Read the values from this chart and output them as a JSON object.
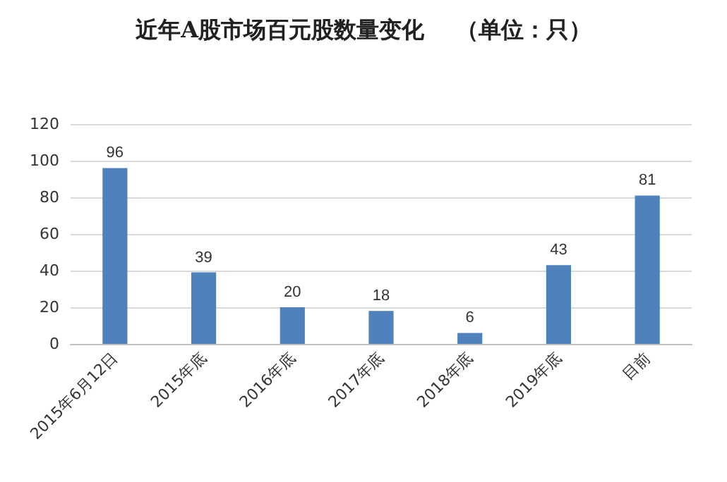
{
  "chart_data": {
    "type": "bar",
    "title": "近年A股市场百元股数量变化    （单位：只）",
    "categories": [
      "2015年6月12日",
      "2015年底",
      "2016年底",
      "2017年底",
      "2018年底",
      "2019年底",
      "目前"
    ],
    "values": [
      96,
      39,
      20,
      18,
      6,
      43,
      81
    ],
    "color": "#4f81bd",
    "ylim": [
      0,
      120
    ],
    "yticks": [
      0,
      20,
      40,
      60,
      80,
      100,
      120
    ],
    "grid": "y",
    "data_labels": true
  }
}
